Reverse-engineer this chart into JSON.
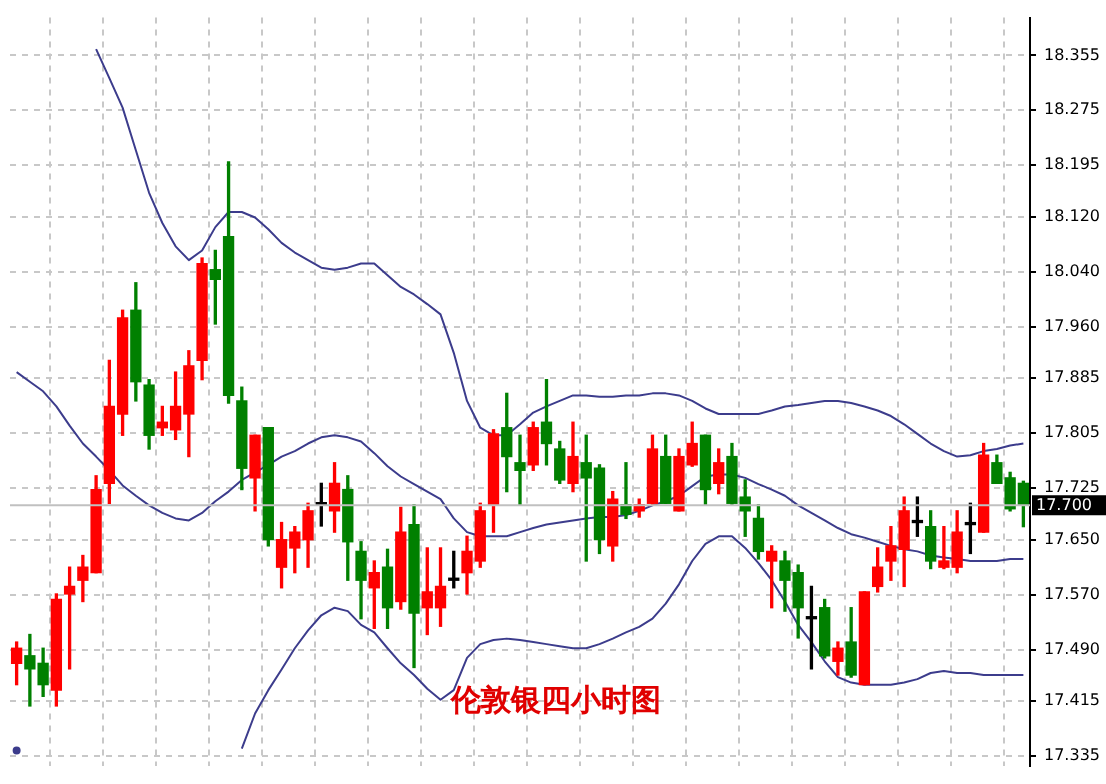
{
  "chart_data": {
    "type": "candlestick",
    "title": "伦敦银四小时图",
    "categories": [
      null,
      null,
      null,
      null,
      null,
      null,
      null,
      null,
      null,
      null,
      null,
      null,
      null,
      null,
      null,
      null,
      null,
      null,
      null,
      null,
      null,
      null,
      null,
      null,
      null,
      null,
      null,
      null,
      null,
      null,
      null,
      null,
      null,
      null,
      null,
      null,
      null,
      null,
      null,
      null,
      null,
      null,
      null,
      null,
      null,
      null,
      null,
      null,
      null,
      null,
      null,
      null,
      null,
      null,
      null,
      null,
      null,
      null,
      null,
      null,
      null,
      null,
      null,
      null,
      null,
      null,
      null,
      null,
      null,
      null,
      null,
      null,
      null,
      null,
      null,
      null,
      null
    ],
    "ohlc": [
      [
        17.47,
        17.501,
        17.439,
        17.492
      ],
      [
        17.481,
        17.512,
        17.408,
        17.462
      ],
      [
        17.47,
        17.492,
        17.422,
        17.439
      ],
      [
        17.431,
        17.571,
        17.408,
        17.563
      ],
      [
        17.571,
        17.61,
        17.462,
        17.582
      ],
      [
        17.591,
        17.627,
        17.56,
        17.61
      ],
      [
        17.602,
        17.743,
        17.602,
        17.723
      ],
      [
        17.732,
        17.911,
        17.703,
        17.844
      ],
      [
        17.833,
        17.984,
        17.802,
        17.973
      ],
      [
        17.984,
        18.024,
        17.852,
        17.88
      ],
      [
        17.875,
        17.883,
        17.782,
        17.802
      ],
      [
        17.813,
        17.844,
        17.802,
        17.821
      ],
      [
        17.81,
        17.894,
        17.796,
        17.844
      ],
      [
        17.833,
        17.925,
        17.771,
        17.903
      ],
      [
        17.911,
        18.06,
        17.883,
        18.052
      ],
      [
        18.043,
        18.071,
        17.964,
        18.029
      ],
      [
        18.091,
        18.2,
        17.849,
        17.86
      ],
      [
        17.852,
        17.872,
        17.723,
        17.754
      ],
      [
        17.74,
        17.802,
        17.692,
        17.802
      ],
      [
        17.813,
        17.813,
        17.641,
        17.65
      ],
      [
        17.61,
        17.675,
        17.58,
        17.65
      ],
      [
        17.638,
        17.669,
        17.602,
        17.661
      ],
      [
        17.65,
        17.703,
        17.61,
        17.692
      ],
      [
        17.701,
        17.732,
        17.67,
        17.701
      ],
      [
        17.692,
        17.762,
        17.661,
        17.732
      ],
      [
        17.723,
        17.743,
        17.591,
        17.647
      ],
      [
        17.633,
        17.647,
        17.535,
        17.591
      ],
      [
        17.58,
        17.619,
        17.521,
        17.602
      ],
      [
        17.61,
        17.636,
        17.521,
        17.551
      ],
      [
        17.56,
        17.697,
        17.549,
        17.661
      ],
      [
        17.672,
        17.701,
        17.464,
        17.543
      ],
      [
        17.551,
        17.638,
        17.512,
        17.574
      ],
      [
        17.551,
        17.638,
        17.524,
        17.582
      ],
      [
        17.591,
        17.633,
        17.58,
        17.591
      ],
      [
        17.602,
        17.655,
        17.571,
        17.633
      ],
      [
        17.619,
        17.703,
        17.61,
        17.692
      ],
      [
        17.701,
        17.81,
        17.661,
        17.804
      ],
      [
        17.813,
        17.863,
        17.72,
        17.771
      ],
      [
        17.762,
        17.802,
        17.701,
        17.751
      ],
      [
        17.759,
        17.821,
        17.751,
        17.813
      ],
      [
        17.821,
        17.883,
        17.759,
        17.79
      ],
      [
        17.782,
        17.793,
        17.732,
        17.737
      ],
      [
        17.732,
        17.821,
        17.72,
        17.771
      ],
      [
        17.762,
        17.802,
        17.619,
        17.74
      ],
      [
        17.754,
        17.759,
        17.63,
        17.65
      ],
      [
        17.641,
        17.72,
        17.619,
        17.709
      ],
      [
        17.701,
        17.762,
        17.681,
        17.687
      ],
      [
        17.692,
        17.709,
        17.683,
        17.701
      ],
      [
        17.703,
        17.802,
        17.701,
        17.782
      ],
      [
        17.771,
        17.802,
        17.703,
        17.703
      ],
      [
        17.692,
        17.782,
        17.692,
        17.771
      ],
      [
        17.759,
        17.821,
        17.757,
        17.79
      ],
      [
        17.802,
        17.802,
        17.701,
        17.723
      ],
      [
        17.732,
        17.782,
        17.717,
        17.762
      ],
      [
        17.771,
        17.79,
        17.701,
        17.703
      ],
      [
        17.712,
        17.737,
        17.655,
        17.692
      ],
      [
        17.681,
        17.701,
        17.622,
        17.633
      ],
      [
        17.619,
        17.641,
        17.551,
        17.633
      ],
      [
        17.619,
        17.633,
        17.546,
        17.591
      ],
      [
        17.602,
        17.613,
        17.507,
        17.551
      ],
      [
        17.535,
        17.582,
        17.462,
        17.535
      ],
      [
        17.551,
        17.563,
        17.478,
        17.481
      ],
      [
        17.473,
        17.501,
        17.453,
        17.492
      ],
      [
        17.501,
        17.551,
        17.45,
        17.453
      ],
      [
        17.439,
        17.574,
        17.439,
        17.574
      ],
      [
        17.582,
        17.638,
        17.574,
        17.61
      ],
      [
        17.619,
        17.669,
        17.591,
        17.641
      ],
      [
        17.636,
        17.712,
        17.582,
        17.692
      ],
      [
        17.675,
        17.712,
        17.655,
        17.675
      ],
      [
        17.669,
        17.692,
        17.608,
        17.619
      ],
      [
        17.61,
        17.669,
        17.608,
        17.619
      ],
      [
        17.61,
        17.692,
        17.602,
        17.661
      ],
      [
        17.672,
        17.703,
        17.63,
        17.672
      ],
      [
        17.661,
        17.79,
        17.661,
        17.773
      ],
      [
        17.762,
        17.773,
        17.732,
        17.732
      ],
      [
        17.74,
        17.748,
        17.692,
        17.695
      ],
      [
        17.732,
        17.735,
        17.669,
        17.7
      ]
    ],
    "series": [
      {
        "type": "line",
        "color": "#3c3c8c",
        "values": [
          null,
          null,
          null,
          null,
          null,
          null,
          18.364,
          18.322,
          18.279,
          18.217,
          18.155,
          18.111,
          18.077,
          18.057,
          18.071,
          18.105,
          18.127,
          18.127,
          18.119,
          18.102,
          18.082,
          18.068,
          18.057,
          18.046,
          18.043,
          18.046,
          18.052,
          18.052,
          18.035,
          18.018,
          18.007,
          17.993,
          17.978,
          17.922,
          17.852,
          17.813,
          17.802,
          17.802,
          17.818,
          17.835,
          17.844,
          17.852,
          17.86,
          17.86,
          17.858,
          17.858,
          17.86,
          17.86,
          17.863,
          17.863,
          17.86,
          17.852,
          17.841,
          17.833,
          17.833,
          17.833,
          17.833,
          17.838,
          17.844,
          17.846,
          17.849,
          17.852,
          17.852,
          17.849,
          17.844,
          17.838,
          17.83,
          17.818,
          17.804,
          17.79,
          17.779,
          17.771,
          17.773,
          17.779,
          17.782,
          17.787,
          17.79
        ]
      },
      {
        "type": "line",
        "color": "#3c3c8c",
        "values": [
          17.894,
          17.88,
          17.866,
          17.844,
          17.816,
          17.79,
          17.771,
          17.751,
          17.729,
          17.714,
          17.7,
          17.689,
          17.681,
          17.678,
          17.689,
          17.706,
          17.72,
          17.737,
          17.748,
          17.759,
          17.771,
          17.779,
          17.79,
          17.799,
          17.802,
          17.799,
          17.793,
          17.776,
          17.757,
          17.742,
          17.731,
          17.72,
          17.709,
          17.681,
          17.661,
          17.655,
          17.655,
          17.655,
          17.661,
          17.667,
          17.672,
          17.675,
          17.678,
          17.681,
          17.683,
          17.683,
          17.686,
          17.692,
          17.7,
          17.706,
          17.714,
          17.728,
          17.742,
          17.745,
          17.745,
          17.74,
          17.731,
          17.723,
          17.714,
          17.7,
          17.689,
          17.678,
          17.667,
          17.658,
          17.653,
          17.647,
          17.641,
          17.636,
          17.633,
          17.627,
          17.624,
          17.622,
          17.619,
          17.619,
          17.619,
          17.622,
          17.622
        ]
      },
      {
        "type": "line",
        "color": "#3c3c8c",
        "values": [
          17.343,
          null,
          null,
          null,
          null,
          null,
          null,
          null,
          null,
          null,
          null,
          null,
          null,
          null,
          null,
          null,
          null,
          17.346,
          17.397,
          17.431,
          17.461,
          17.492,
          17.518,
          17.54,
          17.551,
          17.546,
          17.526,
          17.515,
          17.492,
          17.47,
          17.453,
          17.433,
          17.417,
          17.431,
          17.478,
          17.498,
          17.504,
          17.506,
          17.504,
          17.501,
          17.498,
          17.495,
          17.492,
          17.492,
          17.498,
          17.506,
          17.515,
          17.523,
          17.535,
          17.557,
          17.585,
          17.619,
          17.644,
          17.655,
          17.655,
          17.638,
          17.616,
          17.591,
          17.56,
          17.526,
          17.501,
          17.473,
          17.45,
          17.442,
          17.439,
          17.439,
          17.439,
          17.442,
          17.447,
          17.456,
          17.459,
          17.456,
          17.456,
          17.453,
          17.453,
          17.453,
          17.453
        ]
      }
    ],
    "ylim": [
      17.32,
      18.41
    ],
    "yticks": [
      18.355,
      18.275,
      18.195,
      {
        "value": 18.12,
        "label": "18.120"
      },
      {
        "value": 18.04,
        "label": "18.040"
      },
      {
        "value": 17.96,
        "label": "17.960"
      },
      17.885,
      17.805,
      17.725,
      {
        "value": 17.65,
        "label": "17.650"
      },
      {
        "value": 17.57,
        "label": "17.570"
      },
      {
        "value": 17.49,
        "label": "17.490"
      },
      17.415,
      17.335
    ],
    "ref_lines": [
      {
        "axis": "y",
        "value": 17.7,
        "label": "17.700",
        "color": "#c0c0c0"
      }
    ],
    "grid": true,
    "legend": false
  }
}
